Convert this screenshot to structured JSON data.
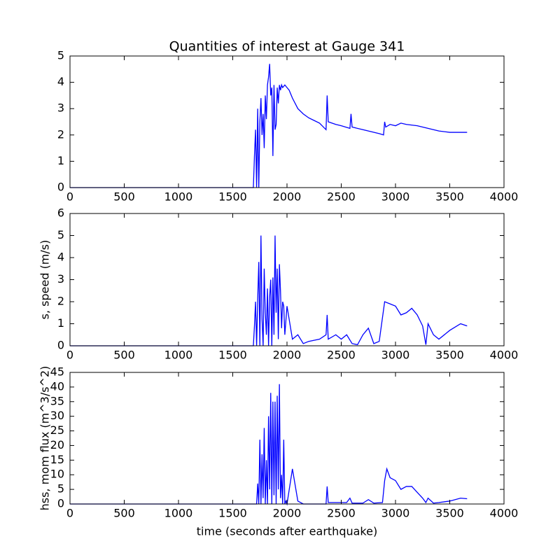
{
  "chart_data": [
    {
      "type": "line",
      "title": "Quantities of interest at Gauge 341",
      "x": [
        0,
        1690,
        1700,
        1710,
        1720,
        1730,
        1740,
        1750,
        1760,
        1770,
        1780,
        1790,
        1800,
        1810,
        1820,
        1830,
        1840,
        1850,
        1860,
        1870,
        1880,
        1890,
        1900,
        1910,
        1920,
        1930,
        1940,
        1950,
        1960,
        1980,
        2000,
        2020,
        2050,
        2100,
        2150,
        2200,
        2250,
        2300,
        2360,
        2370,
        2380,
        2450,
        2500,
        2580,
        2590,
        2600,
        2700,
        2800,
        2850,
        2890,
        2900,
        2910,
        2950,
        3000,
        3050,
        3100,
        3200,
        3300,
        3400,
        3500,
        3600,
        3660
      ],
      "series": [
        {
          "color": "#0000ff",
          "values": [
            0,
            0,
            1.2,
            2.2,
            0,
            3.0,
            0,
            2.5,
            3.4,
            2.0,
            2.8,
            1.5,
            3.5,
            2.6,
            3.9,
            4.2,
            4.7,
            3.5,
            3.8,
            1.2,
            3.9,
            2.2,
            2.4,
            3.8,
            3.2,
            3.9,
            3.7,
            3.9,
            3.8,
            3.9,
            3.8,
            3.7,
            3.4,
            3.0,
            2.8,
            2.65,
            2.55,
            2.45,
            2.2,
            3.5,
            2.5,
            2.4,
            2.35,
            2.25,
            2.8,
            2.3,
            2.2,
            2.1,
            2.05,
            2.0,
            2.5,
            2.3,
            2.4,
            2.35,
            2.45,
            2.4,
            2.35,
            2.25,
            2.15,
            2.1,
            2.1,
            2.1
          ]
        }
      ],
      "xlim": [
        0,
        4000
      ],
      "xticks": [
        0,
        500,
        1000,
        1500,
        2000,
        2500,
        3000,
        3500,
        4000
      ],
      "ylim": [
        0,
        5
      ],
      "yticks": [
        0,
        1,
        2,
        3,
        4,
        5
      ]
    },
    {
      "type": "line",
      "ylabel": "s, speed (m/s)",
      "x": [
        0,
        1690,
        1700,
        1710,
        1720,
        1730,
        1740,
        1750,
        1760,
        1770,
        1780,
        1790,
        1800,
        1810,
        1820,
        1830,
        1840,
        1850,
        1860,
        1870,
        1880,
        1890,
        1900,
        1910,
        1920,
        1930,
        1940,
        1950,
        1960,
        1970,
        1980,
        2000,
        2050,
        2100,
        2150,
        2200,
        2300,
        2360,
        2370,
        2380,
        2450,
        2500,
        2550,
        2600,
        2650,
        2700,
        2750,
        2800,
        2850,
        2900,
        2950,
        3000,
        3050,
        3100,
        3150,
        3200,
        3250,
        3280,
        3300,
        3350,
        3400,
        3500,
        3600,
        3660
      ],
      "series": [
        {
          "color": "#0000ff",
          "values": [
            0,
            0,
            0.9,
            2,
            0,
            2.1,
            3.8,
            0,
            5.0,
            1.2,
            0,
            3.5,
            1.5,
            0.5,
            2.6,
            0,
            2.2,
            3.0,
            0,
            3.1,
            0.5,
            5.0,
            1.5,
            3.5,
            0.3,
            3.7,
            2.5,
            0.8,
            2.0,
            1.8,
            0.5,
            1.8,
            0.3,
            0.5,
            0.1,
            0.2,
            0.3,
            0.5,
            1.4,
            0.3,
            0.5,
            0.3,
            0.5,
            0.1,
            0.05,
            0.5,
            0.8,
            0.1,
            0.2,
            2.0,
            1.9,
            1.8,
            1.4,
            1.5,
            1.7,
            1.4,
            0.9,
            0.05,
            1.0,
            0.5,
            0.3,
            0.7,
            1.0,
            0.9
          ]
        }
      ],
      "xlim": [
        0,
        4000
      ],
      "xticks": [
        0,
        500,
        1000,
        1500,
        2000,
        2500,
        3000,
        3500,
        4000
      ],
      "ylim": [
        0,
        6
      ],
      "yticks": [
        0,
        1,
        2,
        3,
        4,
        5,
        6
      ]
    },
    {
      "type": "line",
      "ylabel": "hss, mom flux (m^3/s^2)",
      "xlabel": "time (seconds after earthquake)",
      "x": [
        0,
        1720,
        1730,
        1740,
        1750,
        1760,
        1770,
        1780,
        1790,
        1800,
        1810,
        1820,
        1830,
        1840,
        1850,
        1860,
        1870,
        1880,
        1890,
        1900,
        1910,
        1920,
        1930,
        1940,
        1950,
        1960,
        1970,
        1980,
        1990,
        2000,
        2050,
        2100,
        2150,
        2360,
        2370,
        2380,
        2450,
        2550,
        2580,
        2600,
        2700,
        2750,
        2800,
        2880,
        2900,
        2920,
        2950,
        3000,
        3050,
        3100,
        3150,
        3200,
        3250,
        3280,
        3300,
        3350,
        3400,
        3500,
        3600,
        3660
      ],
      "series": [
        {
          "color": "#0000ff",
          "values": [
            0,
            0,
            7,
            0,
            22,
            0,
            17,
            2,
            26,
            0,
            15,
            0,
            30,
            5,
            38,
            0,
            35,
            3,
            35,
            0,
            37,
            5,
            41,
            2,
            10,
            0,
            22,
            0,
            1,
            0,
            12,
            1,
            0,
            0,
            6,
            0.5,
            0.5,
            0.5,
            2,
            0.3,
            0.3,
            1.5,
            0.3,
            0.5,
            8,
            12,
            9,
            8,
            5,
            6,
            6,
            4,
            2,
            0.5,
            2,
            0.3,
            0.5,
            1,
            2,
            1.8
          ]
        }
      ],
      "xlim": [
        0,
        4000
      ],
      "xticks": [
        0,
        500,
        1000,
        1500,
        2000,
        2500,
        3000,
        3500,
        4000
      ],
      "ylim": [
        0,
        45
      ],
      "yticks": [
        0,
        5,
        10,
        15,
        20,
        25,
        30,
        35,
        40,
        45
      ]
    }
  ]
}
